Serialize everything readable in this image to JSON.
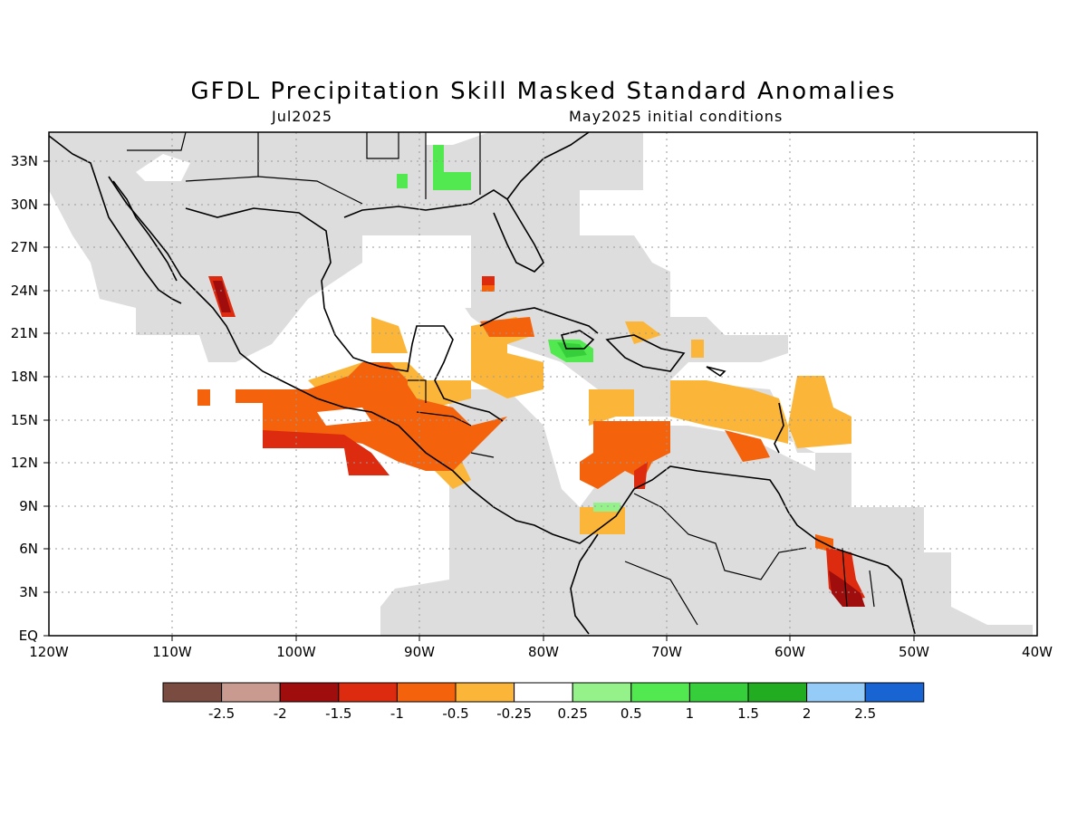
{
  "title": "GFDL Precipitation Skill Masked Standard Anomalies",
  "subtitle_left": "Jul2025",
  "subtitle_right": "May2025 initial conditions",
  "map": {
    "lat_labels": [
      "EQ",
      "3N",
      "6N",
      "9N",
      "12N",
      "15N",
      "18N",
      "21N",
      "24N",
      "27N",
      "30N",
      "33N"
    ],
    "lon_labels": [
      "120W",
      "110W",
      "100W",
      "90W",
      "80W",
      "70W",
      "60W",
      "50W",
      "40W"
    ],
    "extent": {
      "lon_min": -120,
      "lon_max": -40,
      "lat_min": 0,
      "lat_max": 35
    },
    "gridlines": "dotted",
    "mask_color": "#dddddd"
  },
  "legend": {
    "colors": [
      "#7a4b40",
      "#c99b90",
      "#a00d0d",
      "#dd2b0f",
      "#f4620c",
      "#fbb63a",
      "#ffffff",
      "#95f28a",
      "#52e84f",
      "#37ce3c",
      "#21ac21",
      "#94ccf7",
      "#1864d2"
    ],
    "labels": [
      "-2.5",
      "-2",
      "-1.5",
      "-1",
      "-0.5",
      "-0.25",
      "0.25",
      "0.5",
      "1",
      "1.5",
      "2",
      "2.5"
    ]
  }
}
